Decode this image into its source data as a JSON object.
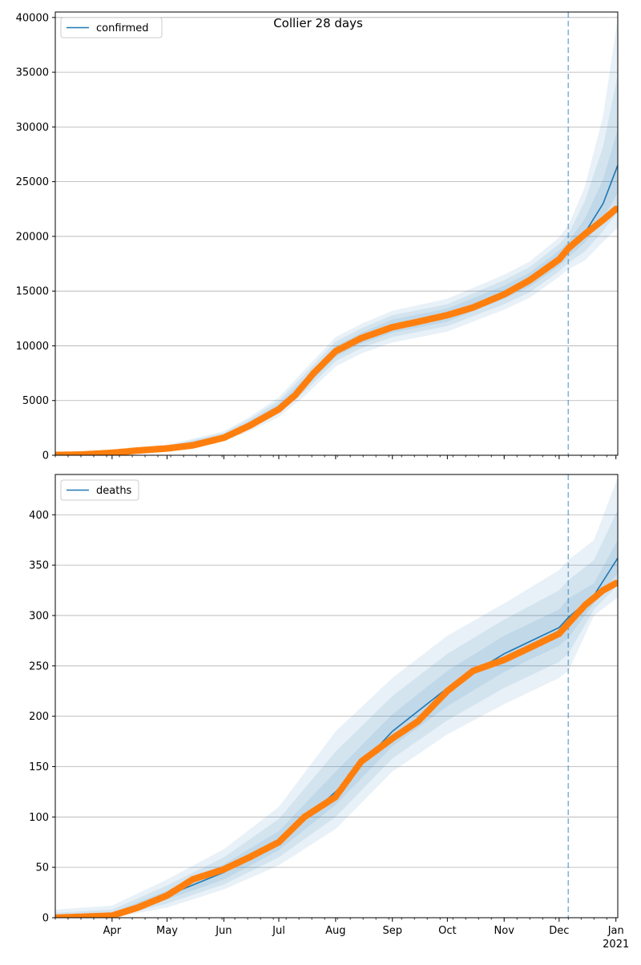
{
  "title": "Collier 28 days",
  "colors": {
    "model": "#1f77b4",
    "observed": "#ff7f0e",
    "band": "#1f77b4",
    "grid": "#b0b0b0",
    "forecast_line": "#1f77b4"
  },
  "chart_data": [
    {
      "type": "line",
      "legend": "confirmed",
      "legend_position": "top-left",
      "grid": "horizontal",
      "x_ticks": [
        "Apr",
        "May",
        "Jun",
        "Jul",
        "Aug",
        "Sep",
        "Oct",
        "Nov",
        "Dec",
        "Jan"
      ],
      "x_tick_dates": [
        "2020-04-01",
        "2020-05-01",
        "2020-06-01",
        "2020-07-01",
        "2020-08-01",
        "2020-09-01",
        "2020-10-01",
        "2020-11-01",
        "2020-12-01",
        "2021-01-01"
      ],
      "x_year_label": "2021",
      "xlim": [
        "2020-03-01",
        "2021-01-02"
      ],
      "ylim": [
        0,
        40500
      ],
      "y_ticks": [
        0,
        5000,
        10000,
        15000,
        20000,
        25000,
        30000,
        35000,
        40000
      ],
      "forecast_start": "2020-12-06",
      "model": {
        "x": [
          "2020-03-01",
          "2020-04-01",
          "2020-05-01",
          "2020-06-01",
          "2020-06-15",
          "2020-07-01",
          "2020-07-15",
          "2020-08-01",
          "2020-08-15",
          "2020-09-01",
          "2020-10-01",
          "2020-11-01",
          "2020-11-15",
          "2020-12-01",
          "2020-12-06",
          "2020-12-15",
          "2020-12-25",
          "2021-01-02"
        ],
        "y": [
          50,
          250,
          650,
          1700,
          2800,
          4300,
          6500,
          9500,
          10700,
          11800,
          12800,
          14900,
          16000,
          18000,
          18800,
          20300,
          23000,
          26500
        ]
      },
      "bands": [
        {
          "lower": [
            0,
            120,
            450,
            1300,
            2200,
            3500,
            5400,
            8100,
            9300,
            10300,
            11300,
            13300,
            14400,
            16300,
            17000,
            17800,
            19500,
            20800
          ],
          "upper": [
            150,
            450,
            950,
            2200,
            3500,
            5300,
            7800,
            10800,
            12000,
            13200,
            14300,
            16500,
            17700,
            19900,
            21000,
            24500,
            31000,
            40000
          ]
        },
        {
          "lower": [
            10,
            160,
            520,
            1400,
            2400,
            3800,
            5800,
            8600,
            9800,
            10800,
            11800,
            13800,
            14900,
            16800,
            17600,
            18600,
            20500,
            22200
          ],
          "upper": [
            110,
            380,
            850,
            2050,
            3300,
            5000,
            7400,
            10400,
            11600,
            12800,
            13800,
            16000,
            17200,
            19300,
            20200,
            23200,
            28200,
            34800
          ]
        },
        {
          "lower": [
            25,
            200,
            580,
            1520,
            2560,
            4000,
            6100,
            9000,
            10200,
            11200,
            12200,
            14300,
            15400,
            17300,
            18100,
            19400,
            21600,
            24000
          ],
          "upper": [
            80,
            320,
            760,
            1900,
            3100,
            4700,
            7000,
            10000,
            11200,
            12400,
            13400,
            15500,
            16700,
            18700,
            19500,
            21600,
            25200,
            29800
          ]
        }
      ],
      "observed": {
        "x": [
          "2020-03-01",
          "2020-03-15",
          "2020-04-01",
          "2020-04-15",
          "2020-05-01",
          "2020-05-15",
          "2020-06-01",
          "2020-06-15",
          "2020-07-01",
          "2020-07-10",
          "2020-07-20",
          "2020-08-01",
          "2020-08-15",
          "2020-09-01",
          "2020-09-15",
          "2020-10-01",
          "2020-10-15",
          "2020-11-01",
          "2020-11-15",
          "2020-12-01",
          "2020-12-06",
          "2020-12-15",
          "2020-12-25",
          "2021-01-01"
        ],
        "y": [
          20,
          60,
          220,
          430,
          620,
          900,
          1600,
          2700,
          4200,
          5500,
          7500,
          9500,
          10700,
          11700,
          12200,
          12800,
          13500,
          14700,
          16000,
          17900,
          18900,
          20200,
          21500,
          22500
        ]
      }
    },
    {
      "type": "line",
      "legend": "deaths",
      "legend_position": "top-left",
      "grid": "horizontal",
      "x_ticks": [
        "Apr",
        "May",
        "Jun",
        "Jul",
        "Aug",
        "Sep",
        "Oct",
        "Nov",
        "Dec",
        "Jan"
      ],
      "x_tick_dates": [
        "2020-04-01",
        "2020-05-01",
        "2020-06-01",
        "2020-07-01",
        "2020-08-01",
        "2020-09-01",
        "2020-10-01",
        "2020-11-01",
        "2020-12-01",
        "2021-01-01"
      ],
      "x_year_label": "2021",
      "xlim": [
        "2020-03-01",
        "2021-01-02"
      ],
      "ylim": [
        0,
        440
      ],
      "y_ticks": [
        0,
        50,
        100,
        150,
        200,
        250,
        300,
        350,
        400
      ],
      "forecast_start": "2020-12-06",
      "model": {
        "x": [
          "2020-03-01",
          "2020-04-01",
          "2020-05-01",
          "2020-06-01",
          "2020-07-01",
          "2020-08-01",
          "2020-09-01",
          "2020-10-01",
          "2020-11-01",
          "2020-12-01",
          "2020-12-06",
          "2020-12-20",
          "2021-01-02"
        ],
        "y": [
          0,
          2,
          22,
          45,
          75,
          125,
          185,
          228,
          262,
          288,
          298,
          320,
          357
        ]
      },
      "bands": [
        {
          "lower": [
            0,
            0,
            10,
            28,
            52,
            88,
            145,
            182,
            212,
            238,
            245,
            300,
            318
          ],
          "upper": [
            8,
            12,
            38,
            68,
            110,
            185,
            238,
            280,
            312,
            345,
            355,
            375,
            437
          ]
        },
        {
          "lower": [
            0,
            0,
            14,
            33,
            60,
            100,
            158,
            196,
            228,
            254,
            262,
            306,
            330
          ],
          "upper": [
            5,
            8,
            32,
            60,
            98,
            165,
            220,
            262,
            296,
            325,
            335,
            355,
            405
          ]
        },
        {
          "lower": [
            0,
            1,
            18,
            38,
            67,
            112,
            170,
            210,
            244,
            270,
            278,
            312,
            342
          ],
          "upper": [
            2,
            5,
            27,
            53,
            86,
            145,
            202,
            245,
            280,
            306,
            317,
            332,
            375
          ]
        }
      ],
      "observed": {
        "x": [
          "2020-03-01",
          "2020-04-01",
          "2020-04-15",
          "2020-05-01",
          "2020-05-15",
          "2020-06-01",
          "2020-06-15",
          "2020-07-01",
          "2020-07-15",
          "2020-08-01",
          "2020-08-15",
          "2020-09-01",
          "2020-09-15",
          "2020-10-01",
          "2020-10-15",
          "2020-11-01",
          "2020-11-15",
          "2020-12-01",
          "2020-12-06",
          "2020-12-15",
          "2020-12-25",
          "2021-01-01"
        ],
        "y": [
          0,
          2,
          10,
          22,
          38,
          48,
          60,
          75,
          100,
          120,
          155,
          178,
          195,
          225,
          245,
          256,
          268,
          282,
          292,
          310,
          325,
          332
        ]
      }
    }
  ]
}
